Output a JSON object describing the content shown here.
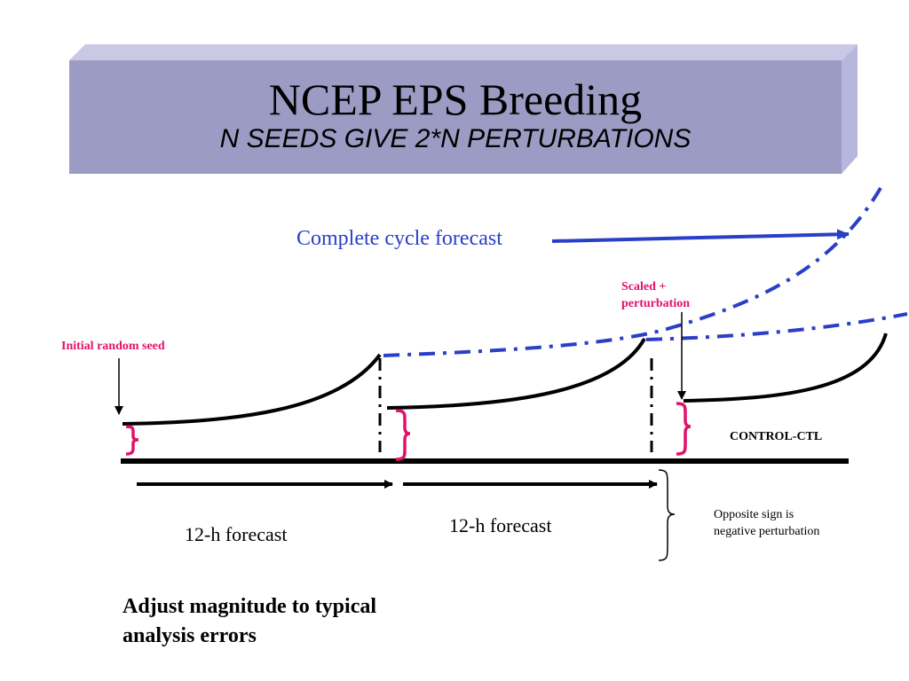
{
  "title": {
    "main": "NCEP EPS Breeding",
    "subtitle": "N SEEDS GIVE 2*N PERTURBATIONS"
  },
  "labels": {
    "complete_cycle": "Complete cycle forecast",
    "scaled_line1": "Scaled +",
    "scaled_line2": "perturbation",
    "initial_seed": "Initial random seed",
    "control": "CONTROL-CTL",
    "forecast_1": "12-h forecast",
    "forecast_2": "12-h forecast",
    "opposite_line1": "Opposite sign is",
    "opposite_line2": "negative perturbation",
    "adjust_line1": "Adjust magnitude to typical",
    "adjust_line2": "analysis errors"
  },
  "colors": {
    "title_box": "#9b9bc4",
    "title_box_side": "#b7b7dd",
    "title_box_top": "#c9c9e6",
    "forecast_blue": "#2a3fc7",
    "seed_pink": "#e2126b",
    "line_black": "#000000"
  }
}
